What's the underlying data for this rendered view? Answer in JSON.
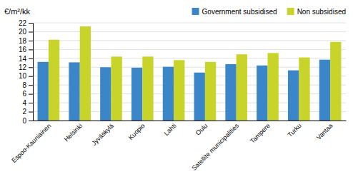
{
  "chart_data": {
    "type": "bar",
    "ylabel": "€/m²/kk",
    "categories": [
      "Espoo-Kauniainen",
      "Helsinki",
      "Jyväskylä",
      "Kuopio",
      "Lahti",
      "Oulu",
      "Satellite municipalities",
      "Tampere",
      "Turku",
      "Vantaa"
    ],
    "series": [
      {
        "name": "Government subsidised",
        "color": "#3a86c8",
        "values": [
          13.2,
          13.1,
          12.0,
          11.9,
          12.1,
          10.8,
          12.7,
          12.4,
          11.3,
          13.7
        ]
      },
      {
        "name": "Non subsidised",
        "color": "#c8d42a",
        "values": [
          18.2,
          21.2,
          14.4,
          14.4,
          13.6,
          13.2,
          14.9,
          15.2,
          14.2,
          17.7
        ]
      }
    ],
    "ylim": [
      0,
      22
    ],
    "yticks": [
      0,
      2,
      4,
      6,
      8,
      10,
      12,
      14,
      16,
      18,
      20,
      22
    ],
    "grid": true,
    "legend": "upper right"
  }
}
